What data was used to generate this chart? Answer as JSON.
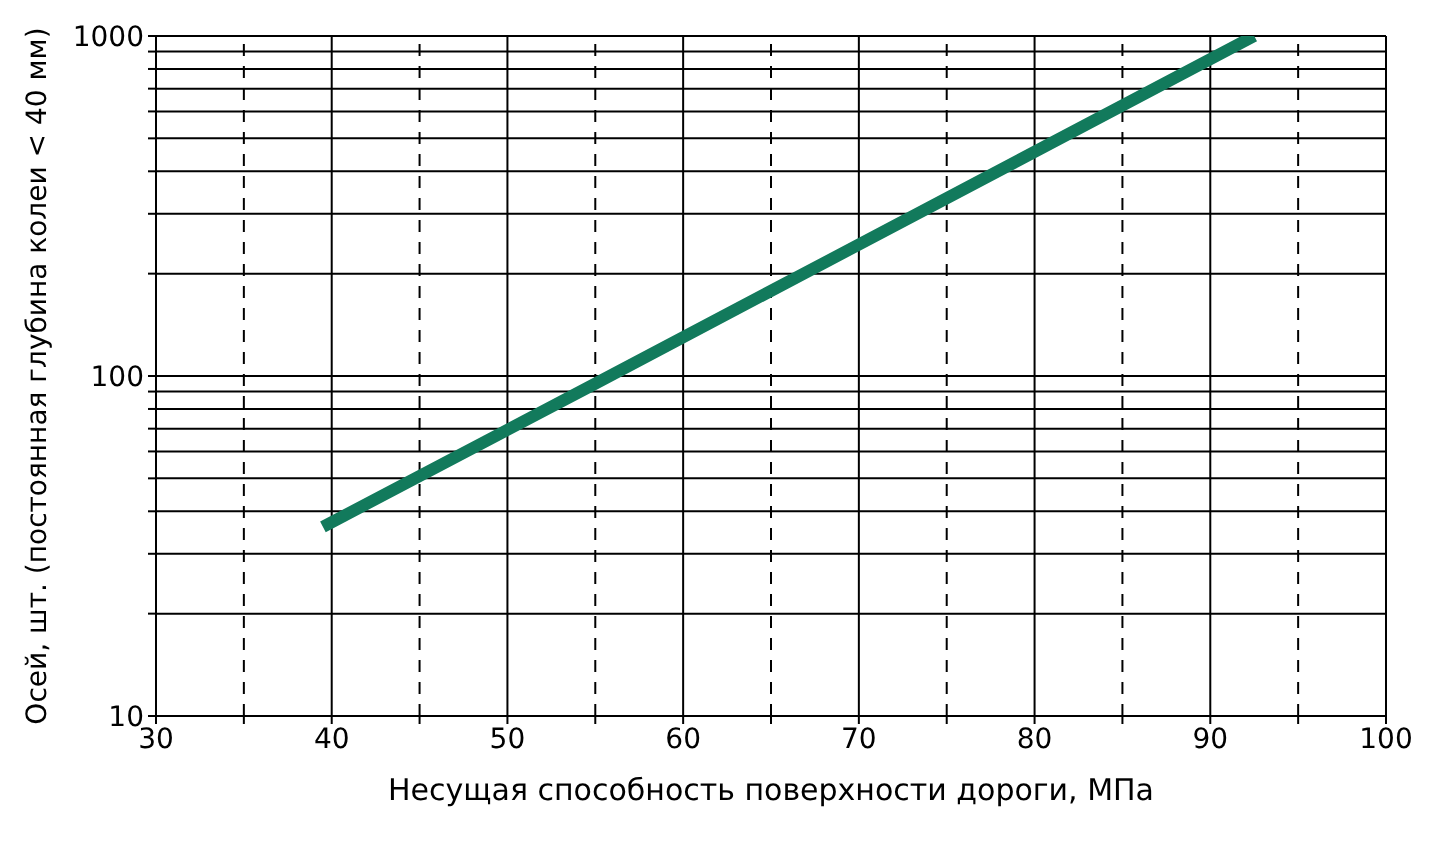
{
  "chart_data": {
    "type": "line",
    "xlabel": "Несущая способность поверхности дороги, МПа",
    "ylabel": "Осей, шт. (постоянная глубина колеи < 40 мм)",
    "x": [
      39.5,
      55,
      92.5
    ],
    "series": [
      {
        "color": "#127a5c",
        "values": [
          36,
          95,
          1000
        ]
      }
    ],
    "xlim": [
      30,
      100
    ],
    "ylim": [
      10,
      1000
    ],
    "log": "y",
    "grid": true,
    "marker": "none",
    "line_style": "solid",
    "xticks": [
      30,
      {
        "value": 35,
        "label": null
      },
      40,
      {
        "value": 45,
        "label": null
      },
      50,
      {
        "value": 55,
        "label": null
      },
      60,
      {
        "value": 65,
        "label": null
      },
      70,
      {
        "value": 75,
        "label": null
      },
      80,
      {
        "value": 85,
        "label": null
      },
      90,
      {
        "value": 95,
        "label": null
      },
      100
    ],
    "yticks": [
      10,
      {
        "value": 20,
        "label": null
      },
      {
        "value": 30,
        "label": null
      },
      {
        "value": 40,
        "label": null
      },
      {
        "value": 50,
        "label": null
      },
      {
        "value": 60,
        "label": null
      },
      {
        "value": 70,
        "label": null
      },
      {
        "value": 80,
        "label": null
      },
      {
        "value": 90,
        "label": null
      },
      100,
      {
        "value": 200,
        "label": null
      },
      {
        "value": 300,
        "label": null
      },
      {
        "value": 400,
        "label": null
      },
      {
        "value": 500,
        "label": null
      },
      {
        "value": 600,
        "label": null
      },
      {
        "value": 700,
        "label": null
      },
      {
        "value": 800,
        "label": null
      },
      {
        "value": 900,
        "label": null
      },
      1000
    ]
  }
}
